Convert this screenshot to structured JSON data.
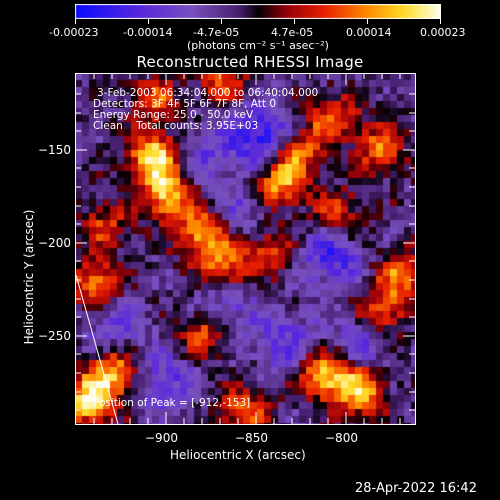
{
  "colorbar": {
    "tick_labels": [
      "-0.00023",
      "-0.00014",
      "-4.7e-05",
      "4.7e-05",
      "0.00014",
      "0.00023"
    ],
    "unit_label": "(photons cm⁻² s⁻¹ asec⁻²)"
  },
  "plot": {
    "title": "Reconstructed RHESSI Image",
    "xlabel": "Heliocentric X (arcsec)",
    "ylabel": "Heliocentric Y (arcsec)",
    "x_ticks": [
      "−900",
      "−850",
      "−800"
    ],
    "y_ticks": [
      "−150",
      "−200",
      "−250"
    ],
    "info_lines": [
      "3-Feb-2003 06:34:04.000 to 06:40:04.000",
      "Detectors: 3F 4F 5F 6F 7F 8F, Att 0",
      "Energy Range: 25.0 - 50.0 keV",
      "Clean    Total counts: 3.95E+03"
    ],
    "peak_label": "Position of Peak = [-912,-153]"
  },
  "timestamp": "28-Apr-2022 16:42",
  "chart_data": {
    "type": "heatmap",
    "title": "Reconstructed RHESSI Image",
    "xlabel": "Heliocentric X (arcsec)",
    "ylabel": "Heliocentric Y (arcsec)",
    "x_ticks": [
      -900,
      -850,
      -800
    ],
    "y_ticks": [
      -150,
      -200,
      -250
    ],
    "xlim": [
      -945,
      -773
    ],
    "ylim": [
      -297,
      -117
    ],
    "color_range": [
      -0.00023,
      0.00023
    ],
    "peak": [
      -912,
      -153
    ],
    "hotspots": [
      [
        -905,
        -160,
        1.0
      ],
      [
        -898,
        -180,
        0.85
      ],
      [
        -880,
        -200,
        0.8
      ],
      [
        -870,
        -218,
        0.7
      ],
      [
        -842,
        -175,
        0.75
      ],
      [
        -833,
        -158,
        0.65
      ],
      [
        -815,
        -140,
        0.6
      ],
      [
        -790,
        -155,
        0.6
      ],
      [
        -812,
        -190,
        0.55
      ],
      [
        -780,
        -220,
        0.6
      ],
      [
        -790,
        -240,
        0.65
      ],
      [
        -935,
        -225,
        0.7
      ],
      [
        -938,
        -285,
        0.95
      ],
      [
        -925,
        -270,
        0.8
      ],
      [
        -880,
        -250,
        0.6
      ],
      [
        -860,
        -290,
        0.6
      ],
      [
        -818,
        -272,
        0.9
      ],
      [
        -800,
        -280,
        0.8
      ],
      [
        -848,
        -208,
        0.55
      ],
      [
        -905,
        -130,
        0.5
      ],
      [
        -870,
        -120,
        0.55
      ],
      [
        -930,
        -195,
        0.45
      ]
    ],
    "coldspots": [
      [
        -850,
        -150,
        1.0
      ],
      [
        -815,
        -210,
        0.8
      ],
      [
        -870,
        -235,
        0.6
      ],
      [
        -925,
        -250,
        0.5
      ],
      [
        -880,
        -160,
        0.5
      ],
      [
        -800,
        -255,
        0.6
      ],
      [
        -840,
        -255,
        0.55
      ],
      [
        -900,
        -275,
        0.6
      ],
      [
        -860,
        -190,
        0.5
      ]
    ]
  }
}
